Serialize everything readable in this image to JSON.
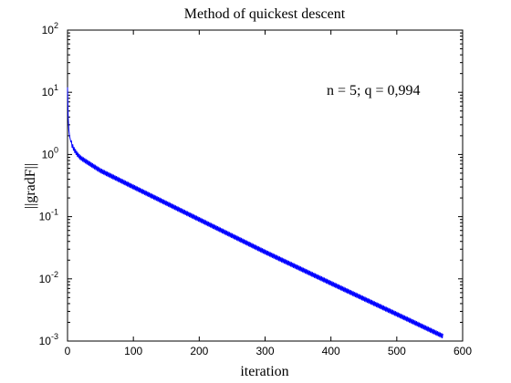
{
  "chart_data": {
    "type": "line",
    "title": "Method of quickest descent",
    "xlabel": "iteration",
    "ylabel": "||gradF||",
    "annotation": "n = 5; q = 0,994",
    "xlim": [
      0,
      600
    ],
    "ylim": [
      0.001,
      100
    ],
    "yscale": "log",
    "xticks": [
      "0",
      "100",
      "200",
      "300",
      "400",
      "500",
      "600"
    ],
    "yticks": [
      {
        "base": "10",
        "exp": "-3"
      },
      {
        "base": "10",
        "exp": "-2"
      },
      {
        "base": "10",
        "exp": "-1"
      },
      {
        "base": "10",
        "exp": "0"
      },
      {
        "base": "10",
        "exp": "1"
      },
      {
        "base": "10",
        "exp": "2"
      }
    ],
    "grid": false,
    "line_color": "#0000ff",
    "series": [
      {
        "x": [
          0,
          1,
          2,
          3,
          5,
          7,
          10,
          15,
          20,
          30,
          50,
          100,
          200,
          300,
          400,
          500,
          570
        ],
        "y": [
          12,
          4,
          2.5,
          2,
          1.6,
          1.4,
          1.2,
          1.0,
          0.88,
          0.75,
          0.55,
          0.3,
          0.09,
          0.027,
          0.0085,
          0.0027,
          0.0012
        ]
      }
    ],
    "oscillation_band": 1.2
  }
}
